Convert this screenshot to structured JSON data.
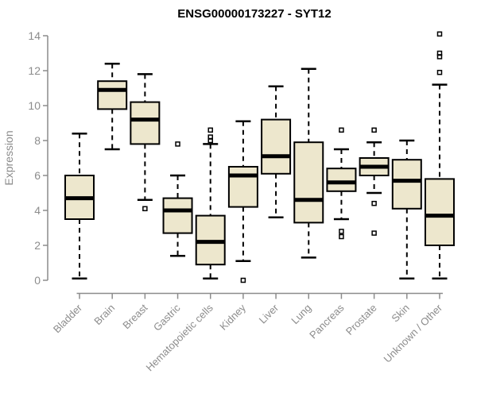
{
  "chart_data": {
    "type": "boxplot",
    "title": "ENSG00000173227 - SYT12",
    "ylabel": "Expression",
    "xlabel": "",
    "ylim": [
      0,
      14
    ],
    "yticks": [
      0,
      2,
      4,
      6,
      8,
      10,
      12,
      14
    ],
    "grid": false,
    "legend": "none",
    "categories": [
      "Bladder",
      "Brain",
      "Breast",
      "Gastric",
      "Hematopoietic cells",
      "Kidney",
      "Liver",
      "Lung",
      "Pancreas",
      "Prostate",
      "Skin",
      "Unknown / Other"
    ],
    "series": [
      {
        "name": "Bladder",
        "min": 0.1,
        "q1": 3.5,
        "median": 4.7,
        "q3": 6.0,
        "max": 8.4,
        "outliers": []
      },
      {
        "name": "Brain",
        "min": 7.5,
        "q1": 9.8,
        "median": 10.9,
        "q3": 11.4,
        "max": 12.4,
        "outliers": []
      },
      {
        "name": "Breast",
        "min": 4.6,
        "q1": 7.8,
        "median": 9.2,
        "q3": 10.2,
        "max": 11.8,
        "outliers": [
          4.1
        ]
      },
      {
        "name": "Gastric",
        "min": 1.4,
        "q1": 2.7,
        "median": 4.0,
        "q3": 4.7,
        "max": 6.0,
        "outliers": [
          7.8
        ]
      },
      {
        "name": "Hematopoietic cells",
        "min": 0.1,
        "q1": 0.9,
        "median": 2.2,
        "q3": 3.7,
        "max": 7.8,
        "outliers": [
          8.6,
          8.2,
          8.0
        ]
      },
      {
        "name": "Kidney",
        "min": 1.1,
        "q1": 4.2,
        "median": 6.0,
        "q3": 6.5,
        "max": 9.1,
        "outliers": [
          0.0
        ]
      },
      {
        "name": "Liver",
        "min": 3.6,
        "q1": 6.1,
        "median": 7.1,
        "q3": 9.2,
        "max": 11.1,
        "outliers": []
      },
      {
        "name": "Lung",
        "min": 1.3,
        "q1": 3.3,
        "median": 4.6,
        "q3": 7.9,
        "max": 12.1,
        "outliers": []
      },
      {
        "name": "Pancreas",
        "min": 3.5,
        "q1": 5.1,
        "median": 5.6,
        "q3": 6.4,
        "max": 7.5,
        "outliers": [
          8.6,
          2.8,
          2.5
        ]
      },
      {
        "name": "Prostate",
        "min": 5.0,
        "q1": 6.0,
        "median": 6.5,
        "q3": 7.0,
        "max": 7.9,
        "outliers": [
          8.6,
          4.4,
          2.7
        ]
      },
      {
        "name": "Skin",
        "min": 0.1,
        "q1": 4.1,
        "median": 5.7,
        "q3": 6.9,
        "max": 8.0,
        "outliers": []
      },
      {
        "name": "Unknown / Other",
        "min": 0.1,
        "q1": 2.0,
        "median": 3.7,
        "q3": 5.8,
        "max": 11.2,
        "outliers": [
          14.1,
          13.0,
          12.8,
          11.9
        ]
      }
    ]
  },
  "colors": {
    "background": "#FFFFFF",
    "box_fill": "#EDE7CD",
    "box_stroke": "#000000",
    "axis": "#8C8C8C",
    "tick_label": "#8C8C8C",
    "title": "#000000"
  }
}
